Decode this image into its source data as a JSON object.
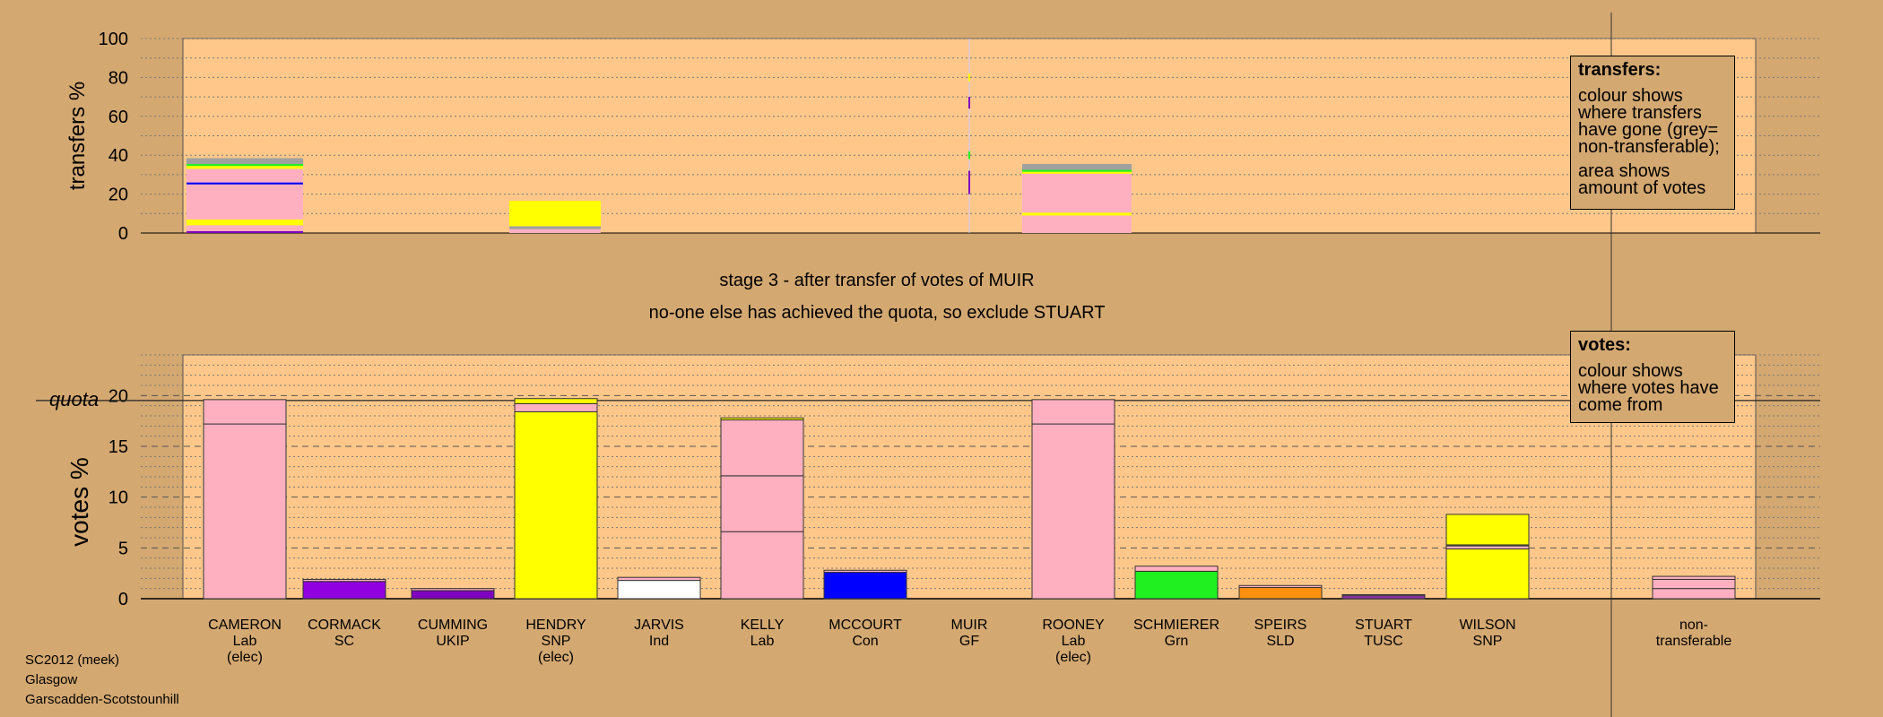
{
  "stage_text": "stage 3 - after transfer of votes of MUIR",
  "stage_note": "no-one else has achieved the quota, so exclude STUART",
  "legend_transfers": {
    "title": "transfers:",
    "line1": "colour shows where transfers have gone (grey= non-transferable);",
    "line2": "area shows amount of votes"
  },
  "legend_votes": {
    "title": "votes:",
    "line1": "colour shows where votes have come from"
  },
  "footer": {
    "line1": "SC2012 (meek)",
    "line2": "Glasgow",
    "line3": "Garscadden-Scotstounhill"
  },
  "colors": {
    "Lab": "#ffb0c0",
    "SC": "#9000e0",
    "UKIP": "#8000c0",
    "SNP": "#ffff00",
    "Ind": "#ffffff",
    "Con": "#0000ff",
    "GF": "#d8d8d8",
    "Grn": "#20f020",
    "SLD": "#ff9010",
    "TUSC": "#9030b0",
    "nontransferable": "#ffb0c0",
    "background": "#d4a871",
    "plot": "#ffc88a",
    "transfer_grey": "#a0a0a0"
  },
  "chart_data": [
    {
      "type": "bar",
      "ylabel": "transfers %",
      "ylim": [
        0,
        100
      ],
      "yticks": [
        0,
        20,
        40,
        60,
        80,
        100
      ],
      "bars": [
        {
          "candidate": "CAMERON",
          "segments": [
            {
              "party": "UKIP",
              "value": 1
            },
            {
              "party": "Lab",
              "value": 3
            },
            {
              "party": "SNP",
              "value": 3
            },
            {
              "party": "Lab",
              "value": 18
            },
            {
              "party": "Con",
              "value": 1
            },
            {
              "party": "Lab",
              "value": 7
            },
            {
              "party": "SNP",
              "value": 1.5
            },
            {
              "party": "Grn",
              "value": 1
            },
            {
              "party": "grey",
              "value": 3
            }
          ]
        },
        {
          "candidate": "HENDRY",
          "segments": [
            {
              "party": "Lab",
              "value": 2
            },
            {
              "party": "grey",
              "value": 1.5
            },
            {
              "party": "SNP",
              "value": 13
            }
          ]
        },
        {
          "candidate": "ROONEY",
          "segments": [
            {
              "party": "Lab",
              "value": 9
            },
            {
              "party": "SNP",
              "value": 1.5
            },
            {
              "party": "Lab",
              "value": 20
            },
            {
              "party": "SNP",
              "value": 1
            },
            {
              "party": "Grn",
              "value": 1
            },
            {
              "party": "grey",
              "value": 3
            }
          ]
        }
      ]
    },
    {
      "type": "bar",
      "ylabel": "votes %",
      "ylim": [
        0,
        24
      ],
      "yticks": [
        0,
        5,
        10,
        15,
        20
      ],
      "quota": 19.6,
      "quota_label": "quota",
      "candidates": [
        {
          "name": "CAMERON",
          "party": "Lab",
          "elected": "(elec)",
          "segments": [
            {
              "party": "Lab",
              "value": 17.2
            },
            {
              "party": "Lab",
              "value": 2.4
            }
          ]
        },
        {
          "name": "CORMACK",
          "party": "SC",
          "elected": "",
          "segments": [
            {
              "party": "SC",
              "value": 1.7
            },
            {
              "party": "Lab",
              "value": 0.2
            }
          ]
        },
        {
          "name": "CUMMING",
          "party": "UKIP",
          "elected": "",
          "segments": [
            {
              "party": "UKIP",
              "value": 0.8
            },
            {
              "party": "Lab",
              "value": 0.2
            }
          ]
        },
        {
          "name": "HENDRY",
          "party": "SNP",
          "elected": "(elec)",
          "segments": [
            {
              "party": "SNP",
              "value": 18.4
            },
            {
              "party": "Lab",
              "value": 0.8
            },
            {
              "party": "SNP",
              "value": 0.5
            }
          ]
        },
        {
          "name": "JARVIS",
          "party": "Ind",
          "elected": "",
          "segments": [
            {
              "party": "Ind",
              "value": 1.8
            },
            {
              "party": "Lab",
              "value": 0.3
            }
          ]
        },
        {
          "name": "KELLY",
          "party": "Lab",
          "elected": "",
          "segments": [
            {
              "party": "Lab",
              "value": 6.6
            },
            {
              "party": "Lab",
              "value": 5.5
            },
            {
              "party": "Lab",
              "value": 5.5
            },
            {
              "party": "SNP",
              "value": 0.2
            }
          ]
        },
        {
          "name": "MCCOURT",
          "party": "Con",
          "elected": "",
          "segments": [
            {
              "party": "Con",
              "value": 2.6
            },
            {
              "party": "Lab",
              "value": 0.2
            }
          ]
        },
        {
          "name": "MUIR",
          "party": "GF",
          "elected": "",
          "segments": []
        },
        {
          "name": "ROONEY",
          "party": "Lab",
          "elected": "(elec)",
          "segments": [
            {
              "party": "Lab",
              "value": 17.2
            },
            {
              "party": "Lab",
              "value": 2.4
            }
          ]
        },
        {
          "name": "SCHMIERER",
          "party": "Grn",
          "elected": "",
          "segments": [
            {
              "party": "Grn",
              "value": 2.7
            },
            {
              "party": "Lab",
              "value": 0.5
            }
          ]
        },
        {
          "name": "SPEIRS",
          "party": "SLD",
          "elected": "",
          "segments": [
            {
              "party": "SLD",
              "value": 1.1
            },
            {
              "party": "Lab",
              "value": 0.2
            }
          ]
        },
        {
          "name": "STUART",
          "party": "TUSC",
          "elected": "",
          "segments": [
            {
              "party": "TUSC",
              "value": 0.3
            },
            {
              "party": "Lab",
              "value": 0.1
            }
          ]
        },
        {
          "name": "WILSON",
          "party": "SNP",
          "elected": "",
          "segments": [
            {
              "party": "SNP",
              "value": 4.9
            },
            {
              "party": "Lab",
              "value": 0.3
            },
            {
              "party": "SNP",
              "value": 0.1
            },
            {
              "party": "SNP",
              "value": 3.0
            }
          ]
        }
      ],
      "nontransferable": {
        "name": "non-",
        "party": "transferable",
        "segments": [
          {
            "party": "Lab",
            "value": 1.0
          },
          {
            "party": "Lab",
            "value": 0.9
          },
          {
            "party": "Lab",
            "value": 0.3
          }
        ]
      }
    }
  ]
}
